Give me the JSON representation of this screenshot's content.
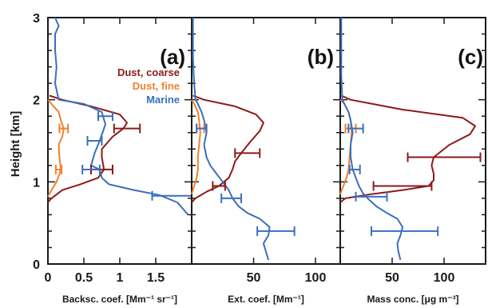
{
  "colors": {
    "dust_coarse": "#8c1a1a",
    "dust_fine": "#f08030",
    "marine": "#3a6fbf",
    "axis": "#1a1a1a"
  },
  "ylabel": "Height [km]",
  "yticks": [
    "0",
    "1",
    "2",
    "3"
  ],
  "legend": {
    "dust_coarse": "Dust, coarse",
    "dust_fine": "Dust, fine",
    "marine": "Marine"
  },
  "chart_data": [
    {
      "type": "line",
      "panel": "(a)",
      "xlabel": "Backsc. coef. [Mm⁻¹ sr⁻¹]",
      "ylabel": "Height [km]",
      "xlim": [
        0,
        2.0
      ],
      "ylim": [
        0,
        3
      ],
      "xticks": [
        "0",
        "0.5",
        "1",
        "1.5"
      ],
      "xtick_values": [
        0,
        0.5,
        1,
        1.5
      ],
      "series": [
        {
          "name": "Dust, coarse",
          "key": "dust_coarse",
          "x": [
            0.0,
            0.05,
            0.2,
            0.45,
            0.7,
            0.78,
            0.75,
            0.75,
            0.9,
            1.05,
            1.1,
            1.0,
            0.6,
            0.2,
            0.02
          ],
          "y": [
            0.75,
            0.8,
            0.9,
            0.97,
            1.05,
            1.15,
            1.3,
            1.4,
            1.55,
            1.65,
            1.72,
            1.82,
            1.92,
            2.0,
            2.05
          ]
        },
        {
          "name": "Dust, fine",
          "key": "dust_fine",
          "x": [
            0.0,
            0.05,
            0.12,
            0.18,
            0.16,
            0.15,
            0.2,
            0.22,
            0.18,
            0.15,
            0.05,
            0.0
          ],
          "y": [
            0.82,
            0.9,
            1.0,
            1.15,
            1.3,
            1.45,
            1.55,
            1.65,
            1.75,
            1.85,
            1.95,
            2.0
          ]
        },
        {
          "name": "Marine",
          "key": "marine",
          "x": [
            1.95,
            1.8,
            1.55,
            1.2,
            0.85,
            0.75,
            0.72,
            0.6,
            0.65,
            0.72,
            0.8,
            0.75,
            0.5,
            0.15,
            0.1,
            0.12,
            0.1,
            0.1,
            0.15,
            0.1
          ],
          "y": [
            0.6,
            0.75,
            0.84,
            0.9,
            0.97,
            1.05,
            1.15,
            1.2,
            1.35,
            1.5,
            1.7,
            1.85,
            1.95,
            2.0,
            2.2,
            2.4,
            2.6,
            2.8,
            2.9,
            3.0
          ]
        }
      ],
      "errorbars": [
        {
          "key": "dust_coarse",
          "x": 1.1,
          "y": 1.65,
          "xerr": 0.18
        },
        {
          "key": "dust_coarse",
          "x": 0.75,
          "y": 1.15,
          "xerr": 0.15
        },
        {
          "key": "dust_fine",
          "x": 0.22,
          "y": 1.65,
          "xerr": 0.06
        },
        {
          "key": "dust_fine",
          "x": 0.15,
          "y": 1.15,
          "xerr": 0.04
        },
        {
          "key": "marine",
          "x": 0.8,
          "y": 1.8,
          "xerr": 0.1
        },
        {
          "key": "marine",
          "x": 0.65,
          "y": 1.5,
          "xerr": 0.1
        },
        {
          "key": "marine",
          "x": 0.6,
          "y": 1.15,
          "xerr": 0.12
        },
        {
          "key": "marine",
          "x": 1.75,
          "y": 0.83,
          "xerr": 0.3
        }
      ]
    },
    {
      "type": "line",
      "panel": "(b)",
      "xlabel": "Ext. coef. [Mm⁻¹]",
      "xlim": [
        0,
        120
      ],
      "ylim": [
        0,
        3
      ],
      "xticks": [
        "50",
        "100"
      ],
      "xtick_values": [
        50,
        100
      ],
      "series": [
        {
          "name": "Dust, coarse",
          "key": "dust_coarse",
          "x": [
            0,
            3,
            12,
            22,
            30,
            33,
            35,
            40,
            48,
            55,
            58,
            52,
            35,
            10,
            1
          ],
          "y": [
            0.75,
            0.8,
            0.88,
            0.95,
            1.05,
            1.15,
            1.25,
            1.35,
            1.5,
            1.62,
            1.72,
            1.82,
            1.92,
            2.0,
            2.05
          ]
        },
        {
          "name": "Dust, fine",
          "key": "dust_fine",
          "x": [
            0,
            2,
            4,
            5,
            5,
            6,
            7,
            6,
            5,
            2,
            0
          ],
          "y": [
            0.85,
            0.95,
            1.05,
            1.15,
            1.3,
            1.45,
            1.6,
            1.75,
            1.85,
            1.95,
            2.0
          ]
        },
        {
          "name": "Marine",
          "key": "marine",
          "x": [
            62,
            60,
            58,
            62,
            63,
            55,
            45,
            38,
            33,
            30,
            25,
            20,
            15,
            12,
            10,
            12,
            10,
            8,
            5,
            3,
            2,
            1,
            1,
            1,
            1
          ],
          "y": [
            0.05,
            0.15,
            0.25,
            0.35,
            0.45,
            0.55,
            0.62,
            0.7,
            0.8,
            0.9,
            1.0,
            1.1,
            1.2,
            1.3,
            1.45,
            1.6,
            1.75,
            1.85,
            1.95,
            2.0,
            2.2,
            2.5,
            2.7,
            2.9,
            3.0
          ]
        }
      ],
      "errorbars": [
        {
          "key": "dust_coarse",
          "x": 45,
          "y": 1.35,
          "xerr": 10
        },
        {
          "key": "dust_coarse",
          "x": 22,
          "y": 0.95,
          "xerr": 5
        },
        {
          "key": "dust_fine",
          "x": 7,
          "y": 1.65,
          "xerr": 3
        },
        {
          "key": "marine",
          "x": 8,
          "y": 1.65,
          "xerr": 4
        },
        {
          "key": "marine",
          "x": 32,
          "y": 0.8,
          "xerr": 8
        },
        {
          "key": "marine",
          "x": 68,
          "y": 0.4,
          "xerr": 15
        }
      ]
    },
    {
      "type": "line",
      "panel": "(c)",
      "xlabel": "Mass conc. [μg m⁻³]",
      "xlim": [
        0,
        140
      ],
      "ylim": [
        0,
        3
      ],
      "xticks": [
        "50",
        "100"
      ],
      "xtick_values": [
        50,
        100
      ],
      "series": [
        {
          "name": "Dust, coarse",
          "key": "dust_coarse",
          "x": [
            0,
            5,
            30,
            60,
            85,
            90,
            90,
            88,
            90,
            105,
            125,
            130,
            118,
            60,
            10,
            1
          ],
          "y": [
            0.75,
            0.8,
            0.85,
            0.9,
            0.95,
            1.02,
            1.1,
            1.2,
            1.3,
            1.45,
            1.58,
            1.68,
            1.78,
            1.88,
            2.0,
            2.05
          ]
        },
        {
          "name": "Dust, fine",
          "key": "dust_fine",
          "x": [
            0,
            3,
            6,
            8,
            9,
            10,
            11,
            10,
            8,
            4,
            0
          ],
          "y": [
            0.85,
            0.95,
            1.05,
            1.15,
            1.3,
            1.45,
            1.6,
            1.75,
            1.85,
            1.95,
            2.0
          ]
        },
        {
          "name": "Marine",
          "key": "marine",
          "x": [
            58,
            56,
            55,
            58,
            60,
            55,
            45,
            35,
            28,
            22,
            18,
            15,
            12,
            10,
            10,
            12,
            10,
            8,
            4,
            2,
            1,
            1,
            1
          ],
          "y": [
            0.05,
            0.15,
            0.25,
            0.35,
            0.45,
            0.55,
            0.62,
            0.7,
            0.78,
            0.86,
            0.95,
            1.05,
            1.15,
            1.3,
            1.45,
            1.6,
            1.75,
            1.85,
            1.95,
            2.0,
            2.3,
            2.7,
            3.0
          ]
        }
      ],
      "errorbars": [
        {
          "key": "dust_coarse",
          "x": 100,
          "y": 1.3,
          "xerr": 35
        },
        {
          "key": "dust_coarse",
          "x": 60,
          "y": 0.95,
          "xerr": 28
        },
        {
          "key": "dust_fine",
          "x": 10,
          "y": 1.65,
          "xerr": 5
        },
        {
          "key": "marine",
          "x": 15,
          "y": 1.65,
          "xerr": 7
        },
        {
          "key": "marine",
          "x": 14,
          "y": 1.15,
          "xerr": 5
        },
        {
          "key": "marine",
          "x": 30,
          "y": 0.82,
          "xerr": 15
        },
        {
          "key": "marine",
          "x": 62,
          "y": 0.4,
          "xerr": 32
        }
      ]
    }
  ]
}
